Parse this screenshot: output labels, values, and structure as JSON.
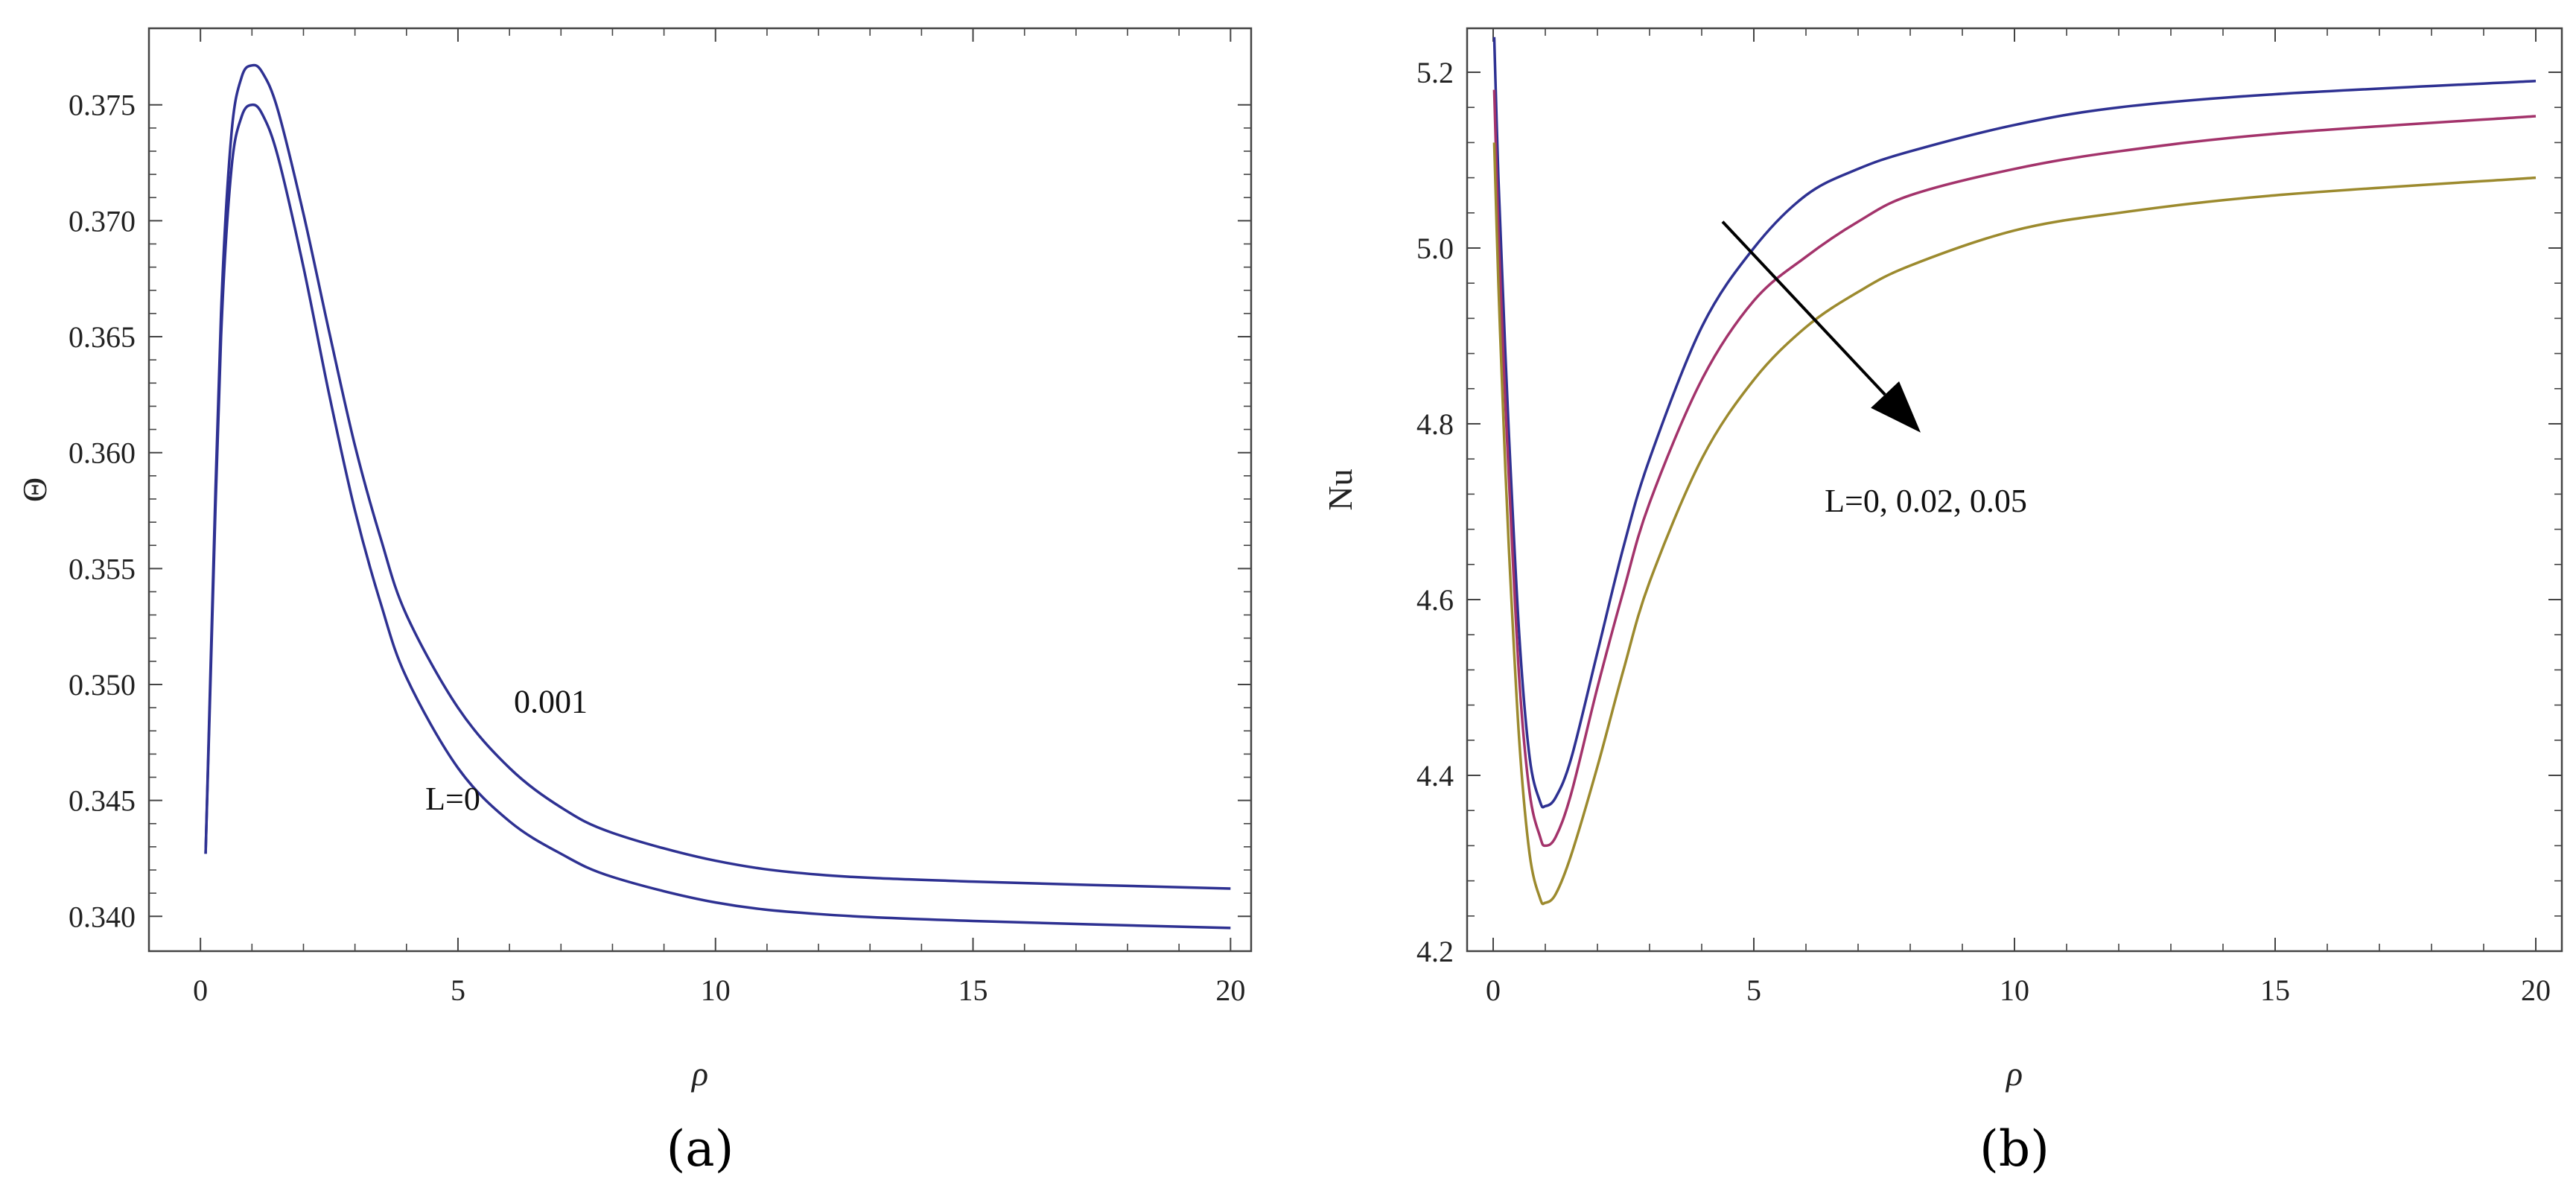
{
  "chart_data": [
    {
      "type": "line",
      "panel_tag": "(a)",
      "xlabel": "ρ",
      "ylabel": "Θ",
      "xlim": [
        -1,
        20.4
      ],
      "ylim": [
        0.3385,
        0.3783
      ],
      "xticks": [
        0,
        5,
        10,
        15,
        20
      ],
      "xtick_labels": [
        "0",
        "5",
        "10",
        "15",
        "20"
      ],
      "yticks": [
        0.34,
        0.345,
        0.35,
        0.355,
        0.36,
        0.365,
        0.37,
        0.375
      ],
      "ytick_labels": [
        "0.340",
        "0.345",
        "0.350",
        "0.355",
        "0.360",
        "0.365",
        "0.370",
        "0.375"
      ],
      "grid": false,
      "annotations": [
        {
          "text": "L=0",
          "at": [
            4.9,
            0.3446
          ]
        },
        {
          "text": "0.001",
          "at": [
            6.8,
            0.3488
          ]
        }
      ],
      "series": [
        {
          "color": "#2e3192",
          "x": [
            0.1,
            0.2,
            0.4,
            0.6,
            0.8,
            1.0,
            1.2,
            1.5,
            2,
            2.5,
            3,
            3.5,
            4,
            5,
            6,
            7,
            8,
            10,
            12,
            15,
            20
          ],
          "y": [
            0.3427,
            0.3505,
            0.365,
            0.3722,
            0.3745,
            0.375,
            0.3746,
            0.3728,
            0.368,
            0.3625,
            0.3575,
            0.3535,
            0.3503,
            0.3464,
            0.3441,
            0.3427,
            0.3417,
            0.3406,
            0.3401,
            0.3398,
            0.3395
          ]
        },
        {
          "color": "#2e3192",
          "x": [
            0.1,
            0.2,
            0.4,
            0.6,
            0.8,
            1.0,
            1.2,
            1.5,
            2,
            2.5,
            3,
            3.5,
            4,
            5,
            6,
            7,
            8,
            10,
            12,
            15,
            20
          ],
          "y": [
            0.3427,
            0.351,
            0.366,
            0.3737,
            0.3762,
            0.3767,
            0.3764,
            0.3748,
            0.3703,
            0.3652,
            0.3603,
            0.3563,
            0.353,
            0.349,
            0.3464,
            0.3447,
            0.3436,
            0.3424,
            0.3418,
            0.3415,
            0.3412
          ]
        }
      ]
    },
    {
      "type": "line",
      "panel_tag": "(b)",
      "xlabel": "ρ",
      "ylabel": "Nu",
      "xlim": [
        -0.5,
        20.5
      ],
      "ylim": [
        4.2,
        5.25
      ],
      "xticks": [
        0,
        5,
        10,
        15,
        20
      ],
      "xtick_labels": [
        "0",
        "5",
        "10",
        "15",
        "20"
      ],
      "yticks": [
        4.2,
        4.4,
        4.6,
        4.8,
        5.0,
        5.2
      ],
      "ytick_labels": [
        "4.2",
        "4.4",
        "4.6",
        "4.8",
        "5.0",
        "5.2"
      ],
      "grid": false,
      "annotations": [
        {
          "text": "L=0, 0.02, 0.05",
          "at": [
            8.3,
            4.7
          ]
        }
      ],
      "arrow": {
        "from": [
          4.4,
          5.03
        ],
        "to": [
          8.2,
          4.79
        ]
      },
      "series": [
        {
          "color": "#2e3192",
          "x": [
            0.02,
            0.1,
            0.2,
            0.3,
            0.5,
            0.7,
            0.9,
            1.0,
            1.2,
            1.5,
            2,
            2.5,
            3,
            4,
            5,
            6,
            7,
            8,
            10,
            12,
            15,
            20
          ],
          "y": [
            5.24,
            5.08,
            4.93,
            4.79,
            4.56,
            4.42,
            4.37,
            4.365,
            4.375,
            4.42,
            4.54,
            4.66,
            4.76,
            4.91,
            5.0,
            5.06,
            5.09,
            5.11,
            5.14,
            5.16,
            5.175,
            5.19
          ]
        },
        {
          "color": "#a3336b",
          "x": [
            0.02,
            0.1,
            0.2,
            0.3,
            0.5,
            0.7,
            0.9,
            1.0,
            1.2,
            1.5,
            2,
            2.5,
            3,
            4,
            5,
            6,
            7,
            8,
            10,
            12,
            15,
            20
          ],
          "y": [
            5.18,
            5.02,
            4.87,
            4.74,
            4.51,
            4.38,
            4.33,
            4.32,
            4.33,
            4.38,
            4.5,
            4.61,
            4.71,
            4.85,
            4.94,
            4.99,
            5.03,
            5.06,
            5.09,
            5.11,
            5.13,
            5.15
          ]
        },
        {
          "color": "#9c8a2e",
          "x": [
            0.02,
            0.1,
            0.2,
            0.3,
            0.5,
            0.7,
            0.9,
            1.0,
            1.2,
            1.5,
            2,
            2.5,
            3,
            4,
            5,
            6,
            7,
            8,
            10,
            12,
            15,
            20
          ],
          "y": [
            5.12,
            4.96,
            4.8,
            4.66,
            4.44,
            4.31,
            4.26,
            4.255,
            4.265,
            4.31,
            4.41,
            4.52,
            4.62,
            4.76,
            4.85,
            4.91,
            4.95,
            4.98,
            5.02,
            5.04,
            5.06,
            5.08
          ]
        }
      ]
    }
  ]
}
